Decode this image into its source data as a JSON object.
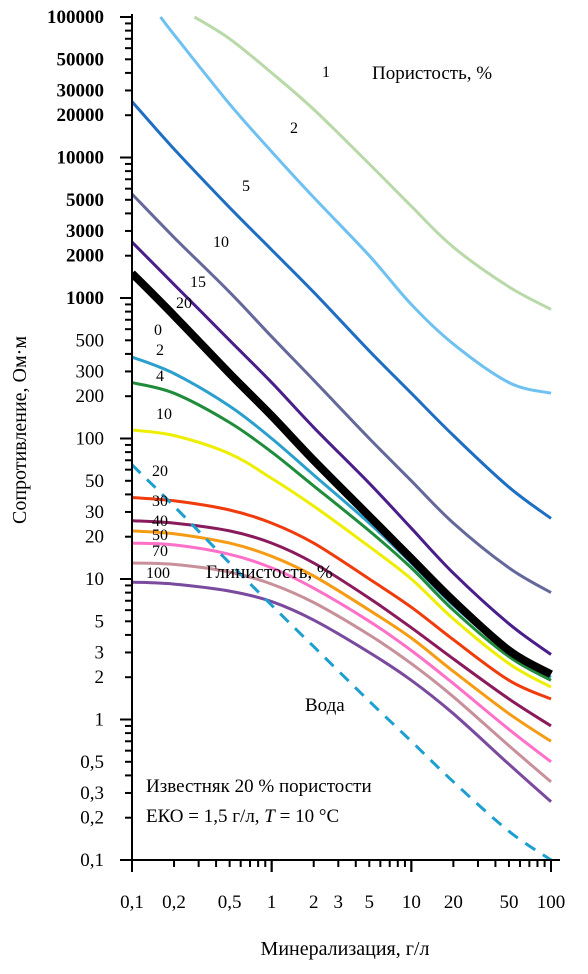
{
  "chart_data": {
    "type": "line",
    "x_scale": "log",
    "y_scale": "log",
    "xlim": [
      0.1,
      100
    ],
    "ylim": [
      0.1,
      100000
    ],
    "xlabel": "Минерализация, г/л",
    "ylabel": "Сопротивление, Ом·м",
    "grid": false,
    "x_ticks": [
      {
        "value": 0.1,
        "label": "0,1"
      },
      {
        "value": 0.2,
        "label": "0,2"
      },
      {
        "value": 0.5,
        "label": "0,5"
      },
      {
        "value": 1,
        "label": "1"
      },
      {
        "value": 2,
        "label": "2"
      },
      {
        "value": 3,
        "label": "3"
      },
      {
        "value": 5,
        "label": "5"
      },
      {
        "value": 10,
        "label": "10"
      },
      {
        "value": 20,
        "label": "20"
      },
      {
        "value": 50,
        "label": "50"
      },
      {
        "value": 100,
        "label": "100"
      }
    ],
    "y_ticks": [
      {
        "value": 0.1,
        "label": "0,1"
      },
      {
        "value": 0.2,
        "label": "0,2"
      },
      {
        "value": 0.3,
        "label": "0,3"
      },
      {
        "value": 0.5,
        "label": "0,5"
      },
      {
        "value": 1,
        "label": "1"
      },
      {
        "value": 2,
        "label": "2"
      },
      {
        "value": 3,
        "label": "3"
      },
      {
        "value": 5,
        "label": "5"
      },
      {
        "value": 10,
        "label": "10"
      },
      {
        "value": 20,
        "label": "20"
      },
      {
        "value": 30,
        "label": "30"
      },
      {
        "value": 50,
        "label": "50"
      },
      {
        "value": 100,
        "label": "100"
      },
      {
        "value": 200,
        "label": "200"
      },
      {
        "value": 300,
        "label": "300"
      },
      {
        "value": 500,
        "label": "500"
      },
      {
        "value": 1000,
        "label": "1000"
      },
      {
        "value": 2000,
        "label": "2000"
      },
      {
        "value": 3000,
        "label": "3000"
      },
      {
        "value": 5000,
        "label": "5000"
      },
      {
        "value": 10000,
        "label": "10000"
      },
      {
        "value": 20000,
        "label": "20000"
      },
      {
        "value": 30000,
        "label": "30000"
      },
      {
        "value": 50000,
        "label": "50000"
      },
      {
        "value": 100000,
        "label": "100000"
      }
    ],
    "annotations": {
      "porosity_title": "Пористость, %",
      "clay_title": "Глинистость, %",
      "water_label": "Вода",
      "legend_line1": "Известняк 20 % пористости",
      "legend_line2_prefix": "ЕКО = 1,5 г/л, ",
      "legend_line2_T": "T",
      "legend_line2_suffix": " = 10 °С"
    },
    "series": [
      {
        "group": "porosity",
        "label": "1",
        "color": "#b9d9a9",
        "width": 3,
        "dash": "",
        "x": [
          0.28,
          0.5,
          1,
          2,
          5,
          10,
          20,
          50,
          100
        ],
        "y": [
          100000,
          70000,
          40000,
          22000,
          9000,
          4500,
          2300,
          1200,
          830
        ]
      },
      {
        "group": "porosity",
        "label": "2",
        "color": "#6ec1f0",
        "width": 3,
        "dash": "",
        "x": [
          0.16,
          0.2,
          0.5,
          1,
          2,
          5,
          10,
          20,
          50,
          100
        ],
        "y": [
          100000,
          75000,
          24000,
          11000,
          5200,
          2000,
          900,
          470,
          250,
          210
        ]
      },
      {
        "group": "porosity",
        "label": "5",
        "color": "#1e6ec4",
        "width": 3,
        "dash": "",
        "x": [
          0.1,
          0.2,
          0.5,
          1,
          2,
          5,
          10,
          20,
          50,
          100
        ],
        "y": [
          25000,
          11500,
          4400,
          2200,
          1100,
          420,
          210,
          105,
          45,
          27
        ]
      },
      {
        "group": "porosity",
        "label": "10",
        "color": "#65689a",
        "width": 3,
        "dash": "",
        "x": [
          0.1,
          0.2,
          0.5,
          1,
          2,
          5,
          10,
          20,
          50,
          100
        ],
        "y": [
          5500,
          2700,
          1100,
          530,
          260,
          100,
          50,
          25,
          12,
          8
        ]
      },
      {
        "group": "porosity",
        "label": "15",
        "color": "#4a1e8a",
        "width": 3,
        "dash": "",
        "x": [
          0.1,
          0.2,
          0.5,
          1,
          2,
          5,
          10,
          20,
          50,
          100
        ],
        "y": [
          2500,
          1250,
          500,
          250,
          120,
          48,
          23,
          11,
          4.8,
          2.9
        ]
      },
      {
        "group": "clay",
        "label": "0",
        "color": "#000000",
        "width": 8,
        "dash": "",
        "x": [
          0.1,
          0.2,
          0.5,
          1,
          2,
          5,
          10,
          20,
          50,
          100
        ],
        "y": [
          1500,
          750,
          290,
          145,
          70,
          28,
          14,
          7,
          3.1,
          2.1
        ]
      },
      {
        "group": "clay",
        "label": "2",
        "color": "#2ba0cc",
        "width": 3,
        "dash": "",
        "x": [
          0.1,
          0.2,
          0.5,
          1,
          2,
          5,
          10,
          20,
          50,
          100
        ],
        "y": [
          380,
          290,
          170,
          100,
          55,
          25,
          13,
          6.5,
          3,
          2
        ]
      },
      {
        "group": "clay",
        "label": "4",
        "color": "#1f8c3c",
        "width": 3,
        "dash": "",
        "x": [
          0.1,
          0.2,
          0.5,
          1,
          2,
          5,
          10,
          20,
          50,
          100
        ],
        "y": [
          250,
          210,
          130,
          80,
          46,
          22,
          12,
          6,
          2.8,
          1.9
        ]
      },
      {
        "group": "clay",
        "label": "10",
        "color": "#eeee00",
        "width": 3,
        "dash": "",
        "x": [
          0.1,
          0.2,
          0.5,
          1,
          2,
          5,
          10,
          20,
          50,
          100
        ],
        "y": [
          115,
          105,
          78,
          52,
          33,
          17,
          10,
          5.2,
          2.5,
          1.7
        ]
      },
      {
        "group": "clay",
        "label": "20",
        "color": "#f03c0c",
        "width": 3,
        "dash": "",
        "x": [
          0.1,
          0.2,
          0.5,
          1,
          2,
          5,
          10,
          20,
          50,
          100
        ],
        "y": [
          38,
          36,
          31,
          25,
          18,
          10,
          6.3,
          3.7,
          1.9,
          1.4
        ]
      },
      {
        "group": "clay",
        "label": "30",
        "color": "#8a1a5c",
        "width": 3,
        "dash": "",
        "x": [
          0.1,
          0.2,
          0.5,
          1,
          2,
          5,
          10,
          20,
          50,
          100
        ],
        "y": [
          26,
          25,
          22,
          18,
          13,
          7.3,
          4.5,
          2.7,
          1.4,
          0.9
        ]
      },
      {
        "group": "clay",
        "label": "40",
        "color": "#f59c14",
        "width": 3,
        "dash": "",
        "x": [
          0.1,
          0.2,
          0.5,
          1,
          2,
          5,
          10,
          20,
          50,
          100
        ],
        "y": [
          22,
          21,
          18,
          14.5,
          10.5,
          6,
          3.8,
          2.2,
          1.1,
          0.7
        ]
      },
      {
        "group": "clay",
        "label": "50",
        "color": "#ff70c8",
        "width": 3,
        "dash": "",
        "x": [
          0.1,
          0.2,
          0.5,
          1,
          2,
          5,
          10,
          20,
          50,
          100
        ],
        "y": [
          18,
          17.5,
          15,
          12,
          8.6,
          5,
          3.1,
          1.8,
          0.85,
          0.5
        ]
      },
      {
        "group": "clay",
        "label": "70",
        "color": "#c8909a",
        "width": 3,
        "dash": "",
        "x": [
          0.1,
          0.2,
          0.5,
          1,
          2,
          5,
          10,
          20,
          50,
          100
        ],
        "y": [
          13,
          12.7,
          11.2,
          9.2,
          6.8,
          4,
          2.5,
          1.45,
          0.65,
          0.36
        ]
      },
      {
        "group": "clay",
        "label": "100",
        "color": "#7a4a9e",
        "width": 3,
        "dash": "",
        "x": [
          0.1,
          0.2,
          0.5,
          1,
          2,
          5,
          10,
          20,
          50,
          100
        ],
        "y": [
          9.5,
          9.2,
          8.2,
          6.9,
          5.1,
          3,
          1.9,
          1.1,
          0.48,
          0.26
        ]
      },
      {
        "group": "water",
        "label": "Вода",
        "color": "#1d9fd0",
        "width": 3,
        "dash": "12,9",
        "x": [
          0.1,
          0.2,
          0.5,
          1,
          2,
          5,
          10,
          20,
          50,
          100
        ],
        "y": [
          65,
          33,
          13,
          6.5,
          3.3,
          1.35,
          0.7,
          0.36,
          0.16,
          0.1
        ]
      }
    ]
  }
}
